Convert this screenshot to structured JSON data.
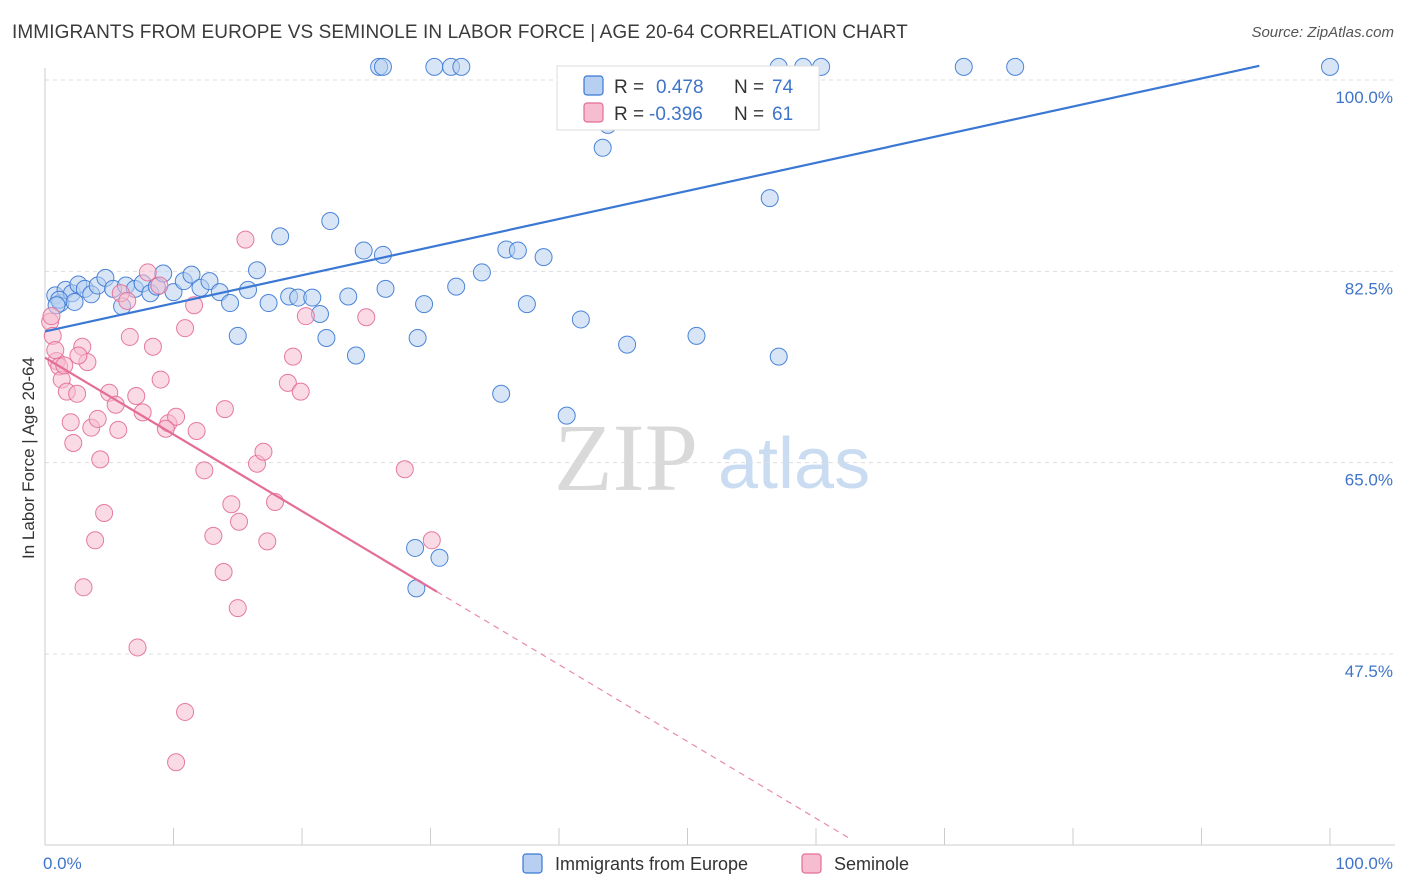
{
  "header": {
    "title": "IMMIGRANTS FROM EUROPE VS SEMINOLE IN LABOR FORCE | AGE 20-64 CORRELATION CHART",
    "source": "Source: ZipAtlas.com"
  },
  "watermark": {
    "zip": "ZIP",
    "atlas": "atlas"
  },
  "colors": {
    "blue": "#3a78d4",
    "blue_fill": "#b7cff1",
    "pink": "#e36d97",
    "pink_fill": "#f6bccf",
    "grid": "#dddddd",
    "axis_text": "#3f74c9"
  },
  "stats": {
    "r_label": "R =",
    "n_label": "N =",
    "europe": {
      "r": "0.478",
      "n": "74"
    },
    "seminole": {
      "r": "-0.396",
      "n": "61"
    }
  },
  "chart_data": {
    "type": "scatter",
    "title": "IMMIGRANTS FROM EUROPE VS SEMINOLE IN LABOR FORCE | AGE 20-64 CORRELATION CHART",
    "xlabel": "",
    "ylabel": "In Labor Force | Age 20-64",
    "xlim": [
      0,
      100
    ],
    "ylim": [
      32.5,
      102
    ],
    "x_tick_labels": [
      {
        "value": 0,
        "label": "0.0%"
      },
      {
        "value": 100,
        "label": "100.0%"
      }
    ],
    "y_tick_labels": [
      {
        "value": 100,
        "label": "100.0%"
      },
      {
        "value": 82.5,
        "label": "82.5%"
      },
      {
        "value": 65,
        "label": "65.0%"
      },
      {
        "value": 47.5,
        "label": "47.5%"
      }
    ],
    "legend": [
      "Immigrants from Europe",
      "Seminole"
    ],
    "series": [
      {
        "name": "Immigrants from Europe",
        "color": "#3a78d4",
        "trend": {
          "x0": 0,
          "y0": 77.0,
          "x1": 94.5,
          "y1": 101.3
        },
        "points": [
          [
            0.8,
            80.3
          ],
          [
            1.2,
            79.6
          ],
          [
            1.6,
            80.8
          ],
          [
            2.1,
            80.5
          ],
          [
            2.6,
            81.3
          ],
          [
            3.1,
            80.9
          ],
          [
            3.6,
            80.4
          ],
          [
            4.1,
            81.2
          ],
          [
            4.7,
            81.9
          ],
          [
            5.3,
            80.9
          ],
          [
            6.0,
            79.3
          ],
          [
            6.3,
            81.2
          ],
          [
            7.0,
            80.9
          ],
          [
            7.6,
            81.4
          ],
          [
            8.2,
            80.5
          ],
          [
            8.7,
            81.1
          ],
          [
            9.2,
            82.3
          ],
          [
            10.0,
            80.6
          ],
          [
            10.8,
            81.6
          ],
          [
            11.4,
            82.2
          ],
          [
            12.1,
            81.0
          ],
          [
            12.8,
            81.6
          ],
          [
            13.6,
            80.6
          ],
          [
            14.4,
            79.6
          ],
          [
            15.0,
            76.6
          ],
          [
            15.8,
            80.8
          ],
          [
            16.5,
            82.6
          ],
          [
            17.4,
            79.6
          ],
          [
            18.3,
            85.7
          ],
          [
            19.0,
            80.2
          ],
          [
            19.7,
            80.1
          ],
          [
            20.8,
            80.1
          ],
          [
            21.4,
            78.6
          ],
          [
            21.9,
            76.4
          ],
          [
            22.2,
            87.1
          ],
          [
            23.6,
            80.2
          ],
          [
            24.2,
            74.8
          ],
          [
            24.8,
            84.4
          ],
          [
            26.3,
            84.0
          ],
          [
            26.5,
            80.9
          ],
          [
            29.0,
            76.4
          ],
          [
            29.5,
            79.5
          ],
          [
            32.0,
            81.1
          ],
          [
            34.0,
            82.4
          ],
          [
            35.5,
            71.3
          ],
          [
            35.9,
            84.5
          ],
          [
            36.8,
            84.4
          ],
          [
            37.5,
            79.5
          ],
          [
            38.8,
            83.8
          ],
          [
            40.6,
            69.3
          ],
          [
            41.7,
            78.1
          ],
          [
            43.4,
            93.8
          ],
          [
            43.8,
            95.9
          ],
          [
            45.3,
            75.8
          ],
          [
            50.7,
            76.6
          ],
          [
            56.4,
            89.2
          ],
          [
            57.1,
            101.2
          ],
          [
            59.0,
            101.2
          ],
          [
            60.4,
            101.2
          ],
          [
            71.5,
            101.2
          ],
          [
            75.5,
            101.2
          ],
          [
            100,
            101.2
          ],
          [
            28.8,
            57.2
          ],
          [
            30.7,
            56.3
          ],
          [
            28.9,
            53.5
          ],
          [
            26.0,
            101.2
          ],
          [
            26.3,
            101.2
          ],
          [
            30.3,
            101.2
          ],
          [
            31.6,
            101.2
          ],
          [
            32.4,
            101.2
          ],
          [
            57.1,
            74.7
          ],
          [
            1.1,
            79.9
          ],
          [
            0.9,
            79.4
          ],
          [
            2.3,
            79.7
          ]
        ]
      },
      {
        "name": "Seminole",
        "color": "#e36d97",
        "trend": {
          "x0": 0,
          "y0": 74.6,
          "x1": 30.5,
          "y1": 53.2
        },
        "trend_dashed": {
          "x0": 30.5,
          "y0": 53.2,
          "x1": 62.8,
          "y1": 30.5
        },
        "points": [
          [
            0.4,
            77.9
          ],
          [
            0.6,
            76.6
          ],
          [
            0.9,
            74.3
          ],
          [
            1.1,
            73.8
          ],
          [
            1.3,
            72.6
          ],
          [
            1.7,
            71.5
          ],
          [
            2.0,
            68.7
          ],
          [
            2.2,
            66.8
          ],
          [
            2.5,
            71.3
          ],
          [
            2.9,
            75.6
          ],
          [
            3.3,
            74.2
          ],
          [
            3.6,
            68.2
          ],
          [
            3.9,
            57.9
          ],
          [
            4.3,
            65.3
          ],
          [
            4.6,
            60.4
          ],
          [
            5.0,
            71.4
          ],
          [
            5.5,
            70.3
          ],
          [
            5.9,
            80.5
          ],
          [
            6.4,
            79.8
          ],
          [
            7.1,
            71.1
          ],
          [
            7.6,
            69.6
          ],
          [
            8.4,
            75.6
          ],
          [
            9.0,
            72.6
          ],
          [
            9.6,
            68.6
          ],
          [
            10.2,
            69.2
          ],
          [
            10.9,
            77.3
          ],
          [
            11.6,
            79.4
          ],
          [
            12.4,
            64.3
          ],
          [
            13.1,
            58.3
          ],
          [
            13.9,
            55.0
          ],
          [
            14.5,
            61.2
          ],
          [
            15.1,
            59.6
          ],
          [
            15.6,
            85.4
          ],
          [
            16.5,
            64.9
          ],
          [
            17.3,
            57.8
          ],
          [
            17.9,
            61.4
          ],
          [
            18.9,
            72.3
          ],
          [
            19.3,
            74.7
          ],
          [
            19.9,
            71.5
          ],
          [
            20.3,
            78.4
          ],
          [
            3.0,
            53.6
          ],
          [
            7.2,
            48.1
          ],
          [
            10.9,
            42.2
          ],
          [
            10.2,
            37.6
          ],
          [
            15.0,
            51.7
          ],
          [
            25.0,
            78.3
          ],
          [
            28.0,
            64.4
          ],
          [
            30.1,
            57.9
          ],
          [
            0.5,
            78.4
          ],
          [
            0.8,
            75.3
          ],
          [
            1.5,
            73.9
          ],
          [
            2.6,
            74.8
          ],
          [
            4.1,
            69.0
          ],
          [
            5.7,
            68.0
          ],
          [
            6.6,
            76.5
          ],
          [
            8.0,
            82.4
          ],
          [
            8.9,
            81.2
          ],
          [
            9.4,
            68.1
          ],
          [
            11.8,
            67.9
          ],
          [
            14.0,
            69.9
          ],
          [
            17.0,
            66.0
          ]
        ]
      }
    ]
  }
}
